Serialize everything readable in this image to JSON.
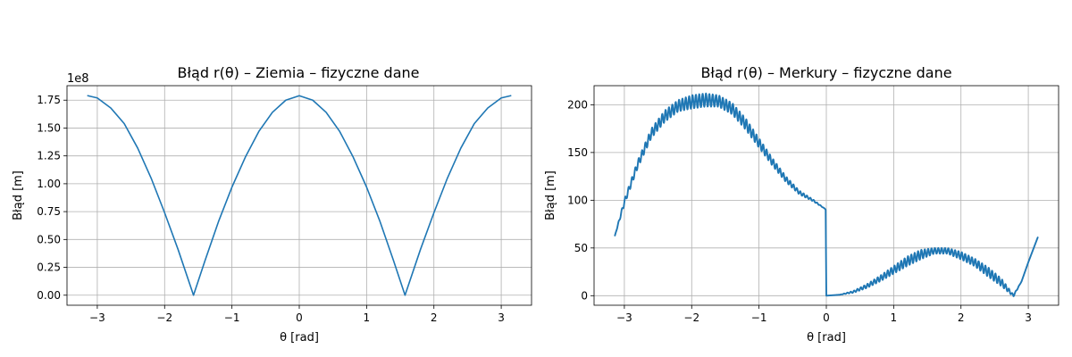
{
  "chart_data": [
    {
      "type": "line",
      "title": "Błąd r(θ) – Ziemia – fizyczne dane",
      "xlabel": "θ [rad]",
      "ylabel": "Błąd [m]",
      "offset_label": "1e8",
      "xlim": [
        -3.45,
        3.45
      ],
      "ylim": [
        -0.09,
        1.88
      ],
      "xticks": [
        -3,
        -2,
        -1,
        0,
        1,
        2,
        3
      ],
      "xtick_labels": [
        "−3",
        "−2",
        "−1",
        "0",
        "1",
        "2",
        "3"
      ],
      "yticks": [
        0.0,
        0.25,
        0.5,
        0.75,
        1.0,
        1.25,
        1.5,
        1.75
      ],
      "ytick_labels": [
        "0.00",
        "0.25",
        "0.50",
        "0.75",
        "1.00",
        "1.25",
        "1.50",
        "1.75"
      ],
      "grid": true,
      "color": "#1f77b4",
      "series": [
        {
          "x": [
            -3.14,
            -3.0,
            -2.8,
            -2.6,
            -2.4,
            -2.2,
            -2.0,
            -1.8,
            -1.571,
            -1.4,
            -1.2,
            -1.0,
            -0.8,
            -0.6,
            -0.4,
            -0.2,
            0.0,
            0.2,
            0.4,
            0.6,
            0.8,
            1.0,
            1.2,
            1.4,
            1.571,
            1.8,
            2.0,
            2.2,
            2.4,
            2.6,
            2.8,
            3.0,
            3.14
          ],
          "y": [
            1.79,
            1.77,
            1.68,
            1.54,
            1.32,
            1.05,
            0.74,
            0.41,
            0.0,
            0.31,
            0.66,
            0.97,
            1.24,
            1.47,
            1.64,
            1.75,
            1.79,
            1.75,
            1.64,
            1.47,
            1.24,
            0.97,
            0.66,
            0.31,
            0.0,
            0.41,
            0.74,
            1.05,
            1.32,
            1.54,
            1.68,
            1.77,
            1.79
          ]
        }
      ]
    },
    {
      "type": "line",
      "title": "Błąd r(θ) – Merkury – fizyczne dane",
      "xlabel": "θ [rad]",
      "ylabel": "Błąd [m]",
      "xlim": [
        -3.45,
        3.45
      ],
      "ylim": [
        -10,
        220
      ],
      "xticks": [
        -3,
        -2,
        -1,
        0,
        1,
        2,
        3
      ],
      "xtick_labels": [
        "−3",
        "−2",
        "−1",
        "0",
        "1",
        "2",
        "3"
      ],
      "yticks": [
        0,
        50,
        100,
        150,
        200
      ],
      "ytick_labels": [
        "0",
        "50",
        "100",
        "150",
        "200"
      ],
      "grid": true,
      "color": "#1f77b4",
      "series": [
        {
          "x": [
            -3.14,
            -3.0,
            -2.8,
            -2.6,
            -2.4,
            -2.2,
            -2.0,
            -1.8,
            -1.6,
            -1.4,
            -1.2,
            -1.0,
            -0.8,
            -0.6,
            -0.4,
            -0.2,
            -0.02,
            -0.01,
            0.0,
            0.2,
            0.4,
            0.6,
            0.8,
            1.0,
            1.2,
            1.4,
            1.6,
            1.8,
            2.0,
            2.2,
            2.4,
            2.6,
            2.78,
            2.9,
            3.0,
            3.14
          ],
          "y": [
            63,
            98,
            138,
            170,
            188,
            199,
            203,
            205,
            204,
            196,
            180,
            160,
            140,
            122,
            108,
            100,
            91,
            90,
            0,
            1,
            4,
            10,
            18,
            27,
            36,
            43,
            47,
            47,
            42,
            35,
            25,
            14,
            0,
            15,
            35,
            61
          ],
          "ripple": [
            0,
            3,
            4,
            5,
            6,
            6,
            7,
            7,
            6,
            6,
            6,
            5,
            4,
            3,
            2,
            1,
            0,
            0,
            0,
            0,
            1,
            2,
            3,
            4,
            5,
            5,
            3,
            3,
            4,
            4,
            5,
            4,
            1,
            0,
            0,
            0
          ]
        }
      ]
    }
  ]
}
